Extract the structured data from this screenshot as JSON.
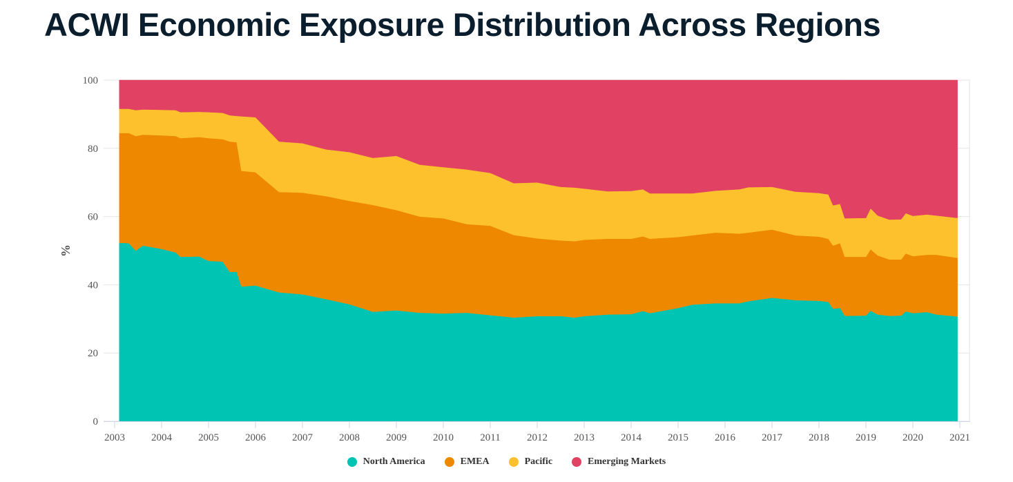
{
  "title": "ACWI Economic Exposure Distribution Across Regions",
  "chart_data": {
    "type": "area",
    "stacked": true,
    "title": "",
    "xlabel": "",
    "ylabel": "%",
    "xlim": [
      2003,
      2021
    ],
    "ylim": [
      0,
      100
    ],
    "x_ticks": [
      "2003",
      "2004",
      "2005",
      "2006",
      "2007",
      "2008",
      "2009",
      "2010",
      "2011",
      "2012",
      "2013",
      "2014",
      "2015",
      "2016",
      "2017",
      "2018",
      "2019",
      "2020",
      "2021"
    ],
    "y_ticks": [
      "0",
      "20",
      "40",
      "60",
      "80",
      "100"
    ],
    "grid": true,
    "legend_position": "bottom",
    "x": [
      2003.1,
      2003.3,
      2003.45,
      2003.6,
      2004.0,
      2004.3,
      2004.4,
      2004.8,
      2005.0,
      2005.3,
      2005.45,
      2005.6,
      2005.7,
      2006.0,
      2006.5,
      2007.0,
      2007.5,
      2008.0,
      2008.5,
      2009.0,
      2009.5,
      2010.0,
      2010.5,
      2011.0,
      2011.5,
      2012.0,
      2012.5,
      2012.8,
      2013.0,
      2013.5,
      2014.0,
      2014.25,
      2014.4,
      2015.0,
      2015.3,
      2015.8,
      2016.3,
      2016.5,
      2017.0,
      2017.5,
      2018.0,
      2018.2,
      2018.3,
      2018.45,
      2018.55,
      2019.0,
      2019.1,
      2019.25,
      2019.5,
      2019.75,
      2019.85,
      2020.0,
      2020.3,
      2020.5,
      2020.95
    ],
    "series": [
      {
        "name": "North America",
        "color": "#00c4b3",
        "values": [
          52.3,
          52.2,
          50.0,
          51.5,
          50.5,
          49.5,
          48.2,
          48.3,
          47.0,
          46.8,
          43.8,
          43.8,
          39.5,
          39.8,
          37.8,
          37.2,
          35.8,
          34.3,
          32.1,
          32.5,
          31.8,
          31.6,
          31.8,
          31.1,
          30.4,
          30.8,
          30.8,
          30.4,
          30.8,
          31.3,
          31.4,
          32.3,
          31.7,
          33.2,
          34.2,
          34.6,
          34.6,
          35.2,
          36.2,
          35.5,
          35.3,
          35.0,
          33.0,
          33.2,
          30.9,
          31.0,
          32.4,
          31.3,
          30.9,
          31.0,
          32.2,
          31.7,
          32.0,
          31.3,
          30.7
        ]
      },
      {
        "name": "EMEA",
        "color": "#ee8800",
        "values": [
          32.2,
          32.3,
          33.6,
          32.5,
          33.3,
          34.1,
          34.8,
          35.0,
          36.0,
          35.9,
          38.2,
          38.0,
          33.9,
          33.2,
          29.4,
          29.8,
          30.2,
          30.3,
          31.3,
          29.4,
          28.2,
          27.9,
          26.0,
          26.2,
          24.2,
          22.8,
          22.2,
          22.4,
          22.4,
          22.2,
          22.1,
          21.9,
          21.8,
          20.8,
          20.3,
          20.7,
          20.4,
          20.1,
          20.0,
          19.0,
          18.8,
          18.5,
          18.5,
          19.0,
          17.3,
          17.2,
          18.0,
          17.3,
          16.5,
          16.4,
          17.0,
          16.7,
          16.8,
          17.5,
          17.2
        ]
      },
      {
        "name": "Pacific",
        "color": "#fdc12e",
        "values": [
          7.1,
          7.1,
          7.6,
          7.4,
          7.5,
          7.6,
          7.6,
          7.4,
          7.6,
          7.7,
          7.7,
          7.7,
          16.0,
          16.1,
          14.8,
          14.5,
          13.7,
          14.3,
          13.8,
          15.9,
          15.2,
          15.0,
          16.0,
          15.5,
          15.2,
          16.4,
          15.7,
          15.7,
          15.0,
          13.9,
          14.0,
          13.8,
          13.3,
          12.8,
          12.3,
          12.3,
          13.0,
          13.3,
          12.5,
          12.8,
          12.8,
          13.0,
          11.8,
          11.5,
          11.3,
          11.4,
          12.0,
          11.7,
          11.7,
          11.8,
          11.8,
          11.8,
          11.8,
          11.5,
          11.7
        ]
      },
      {
        "name": "Emerging Markets",
        "color": "#e14263",
        "values": [
          8.4,
          8.4,
          8.8,
          8.6,
          8.7,
          8.8,
          9.4,
          9.3,
          9.4,
          9.6,
          10.3,
          10.5,
          10.6,
          10.9,
          18.0,
          18.5,
          20.3,
          21.1,
          22.8,
          22.2,
          24.8,
          25.5,
          26.2,
          27.2,
          30.2,
          30.0,
          31.3,
          31.5,
          31.8,
          32.6,
          32.5,
          32.0,
          33.2,
          33.2,
          33.2,
          32.4,
          32.0,
          31.4,
          31.3,
          32.7,
          33.1,
          33.5,
          36.7,
          36.3,
          40.5,
          40.4,
          37.6,
          39.7,
          40.9,
          40.8,
          39.0,
          39.8,
          39.4,
          39.7,
          40.4
        ]
      }
    ]
  }
}
